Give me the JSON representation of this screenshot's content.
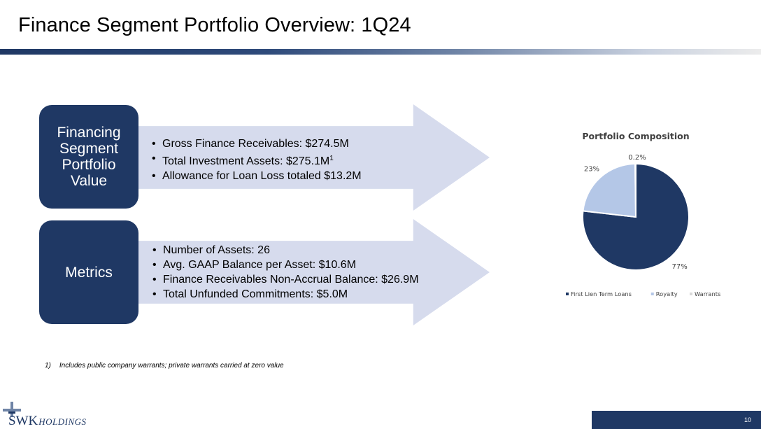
{
  "title": "Finance Segment Portfolio Overview: 1Q24",
  "section1": {
    "box_lines": [
      "Financing",
      "Segment",
      "Portfolio",
      "Value"
    ],
    "bullets": [
      {
        "text": "Gross Finance Receivables: $274.5M",
        "sup": ""
      },
      {
        "text": "Total Investment Assets: $275.1M",
        "sup": "1"
      },
      {
        "text": "Allowance for Loan Loss totaled $13.2M",
        "sup": ""
      }
    ]
  },
  "section2": {
    "box_label": "Metrics",
    "bullets": [
      {
        "text": "Number of Assets: 26",
        "sup": ""
      },
      {
        "text": "Avg. GAAP Balance per Asset: $10.6M",
        "sup": ""
      },
      {
        "text": "Finance Receivables Non-Accrual Balance: $26.9M",
        "sup": ""
      },
      {
        "text": "Total Unfunded Commitments: $5.0M",
        "sup": ""
      }
    ]
  },
  "footnote": {
    "number": "1)",
    "text": "Includes public company warrants; private warrants carried at zero value"
  },
  "chart_data": {
    "type": "pie",
    "title": "Portfolio Composition",
    "slices": [
      {
        "label": "First Lien Term Loans",
        "value": 76.8,
        "display": "77%",
        "color": "#1f3864"
      },
      {
        "label": "Royalty",
        "value": 23.0,
        "display": "23%",
        "color": "#b4c7e7"
      },
      {
        "label": "Warrants",
        "value": 0.2,
        "display": "0.2%",
        "color": "#d9d9d9"
      }
    ],
    "legend_position": "bottom"
  },
  "logo": {
    "main": "SWK",
    "sub": "HOLDINGS"
  },
  "page_number": "10"
}
